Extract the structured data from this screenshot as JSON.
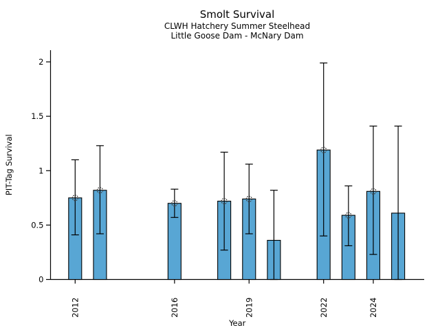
{
  "header": {
    "title": "Smolt Survival",
    "subtitle1": "CLWH Hatchery Summer Steelhead",
    "subtitle2": "Little Goose Dam - McNary Dam"
  },
  "chart_data": {
    "type": "bar",
    "title": "Smolt Survival",
    "subtitle1": "CLWH Hatchery Summer Steelhead",
    "subtitle2": "Little Goose Dam - McNary Dam",
    "xlabel": "Year",
    "ylabel": "PIT-Tag Survival",
    "ylim": [
      0,
      2.1
    ],
    "yticks": [
      0,
      0.5,
      1,
      1.5,
      2
    ],
    "ytick_labels": [
      "0",
      "0.5",
      "1",
      "1.5",
      "2"
    ],
    "xticks": [
      2012,
      2016,
      2019,
      2022,
      2024
    ],
    "xtick_labels": [
      "2012",
      "2016",
      "2019",
      "2022",
      "2024"
    ],
    "grid": false,
    "legend": "none",
    "colors": {
      "bar_fill": "#58A6D4",
      "bar_edge": "#000000",
      "error_bar": "#000000",
      "marker_edge": "#404040",
      "axis": "#000000"
    },
    "series": [
      {
        "year": 2012,
        "survival": 0.75,
        "ci_low": 0.41,
        "ci_high": 1.1,
        "marker": true
      },
      {
        "year": 2013,
        "survival": 0.82,
        "ci_low": 0.42,
        "ci_high": 1.23,
        "marker": true
      },
      {
        "year": 2016,
        "survival": 0.7,
        "ci_low": 0.57,
        "ci_high": 0.83,
        "marker": true
      },
      {
        "year": 2018,
        "survival": 0.72,
        "ci_low": 0.27,
        "ci_high": 1.17,
        "marker": true
      },
      {
        "year": 2019,
        "survival": 0.74,
        "ci_low": 0.42,
        "ci_high": 1.06,
        "marker": true
      },
      {
        "year": 2020,
        "survival": 0.36,
        "ci_low": 0.0,
        "ci_high": 0.82,
        "marker": false
      },
      {
        "year": 2022,
        "survival": 1.19,
        "ci_low": 0.4,
        "ci_high": 1.99,
        "marker": true
      },
      {
        "year": 2023,
        "survival": 0.59,
        "ci_low": 0.31,
        "ci_high": 0.86,
        "marker": true
      },
      {
        "year": 2024,
        "survival": 0.81,
        "ci_low": 0.23,
        "ci_high": 1.41,
        "marker": true
      },
      {
        "year": 2025,
        "survival": 0.61,
        "ci_low": 0.0,
        "ci_high": 1.41,
        "marker": false
      }
    ]
  }
}
